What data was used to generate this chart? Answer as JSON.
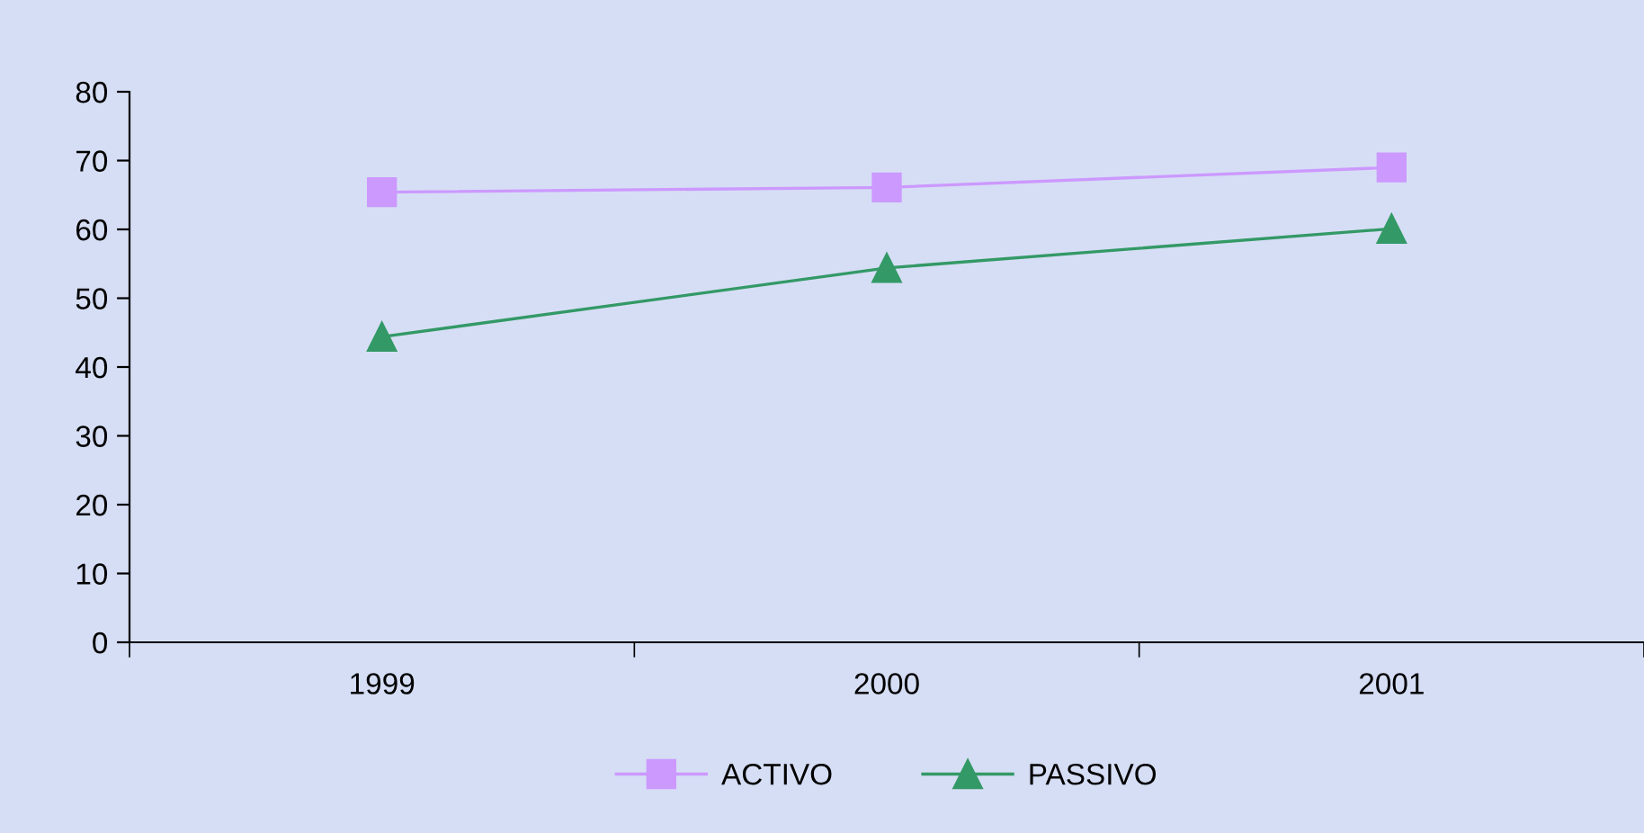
{
  "chart_data": {
    "type": "line",
    "categories": [
      "1999",
      "2000",
      "2001"
    ],
    "series": [
      {
        "name": "ACTIVO",
        "color": "#cc99ff",
        "values": [
          65.4,
          66.1,
          69.0
        ],
        "marker": "square"
      },
      {
        "name": "PASSIVO",
        "color": "#339966",
        "values": [
          44.4,
          54.4,
          60.1
        ],
        "marker": "triangle"
      }
    ],
    "ylim": [
      0,
      80
    ],
    "yticks": [
      0,
      10,
      20,
      30,
      40,
      50,
      60,
      70,
      80
    ],
    "grid": false,
    "legend": "bottom",
    "line_style": "solid"
  }
}
